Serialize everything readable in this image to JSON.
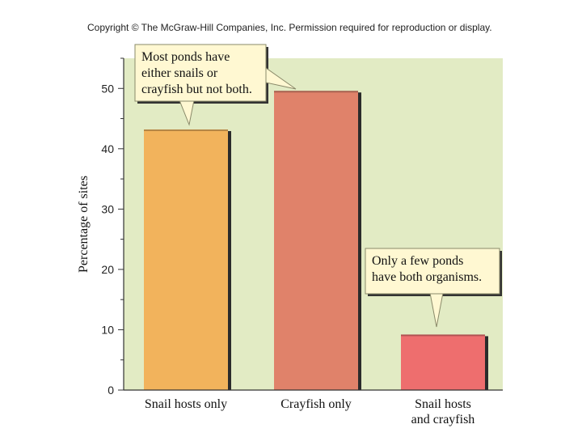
{
  "copyright": "Copyright © The McGraw-Hill Companies, Inc. Permission required for reproduction or display.",
  "chart_data": {
    "type": "bar",
    "categories": [
      "Snail hosts only",
      "Crayfish only",
      "Snail hosts\nand crayfish"
    ],
    "values": [
      43.2,
      49.6,
      9.2
    ],
    "bar_colors": [
      "#f2b35c",
      "#e0826a",
      "#ee6e6e"
    ],
    "ylabel": "Percentage of sites",
    "xlabel": "",
    "ylim": [
      0,
      55
    ],
    "yticks": [
      0,
      10,
      20,
      30,
      40,
      50
    ],
    "background_color": "#e2ebc4",
    "annotations": [
      "Most ponds have\neither snails or\ncrayfish but not both.",
      "Only a few ponds\nhave both organisms."
    ]
  }
}
